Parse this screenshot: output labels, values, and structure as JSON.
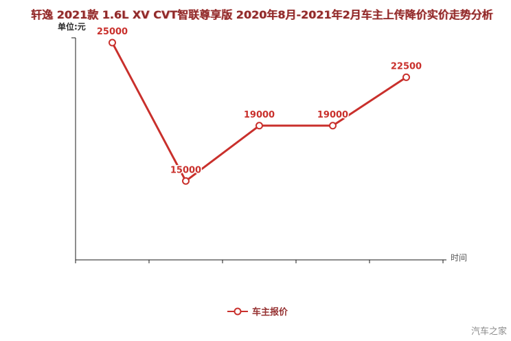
{
  "page": {
    "watermark": "汽车之家"
  },
  "chart_data": {
    "type": "line",
    "title": "轩逸 2021款 1.6L XV CVT智联尊享版 2020年8月-2021年2月车主上传降价实价走势分析",
    "ylabel": "单位:元",
    "xlabel": "时间",
    "legend_label": "车主报价",
    "legend_position": "bottom",
    "grid": false,
    "values": [
      25000,
      15000,
      19000,
      19000,
      22500
    ],
    "point_labels": [
      "25000",
      "15000",
      "19000",
      "19000",
      "22500"
    ],
    "ylim": [
      9300,
      25350
    ],
    "line_color": "#c9302c",
    "marker": "hollow-circle",
    "marker_fill": "#ffffff"
  }
}
